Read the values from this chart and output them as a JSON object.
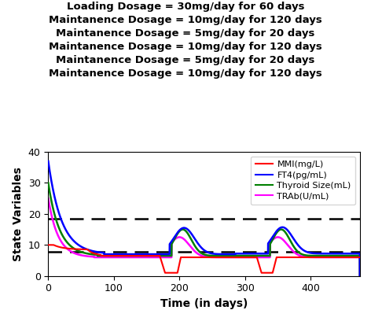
{
  "title_lines": [
    "Loading Dosage = 30mg/day for 60 days",
    "Maintanence Dosage = 10mg/day for 120 days",
    "Maintanence Dosage = 5mg/day for 20 days",
    "Maintanence Dosage = 10mg/day for 120 days",
    "Maintanence Dosage = 5mg/day for 20 days",
    "Maintanence Dosage = 10mg/day for 120 days"
  ],
  "xlabel": "Time (in days)",
  "ylabel": "State Variables",
  "xlim": [
    0,
    475
  ],
  "ylim": [
    0,
    40
  ],
  "dashed_lines": [
    7.7,
    18.5
  ],
  "legend_labels": [
    "MMI(mg/L)",
    "FT4(pg/mL)",
    "Thyroid Size(mL)",
    "TRAb(U/mL)"
  ],
  "legend_colors": [
    "red",
    "blue",
    "green",
    "magenta"
  ],
  "background": "#ffffff",
  "title_fontsize": 9.5,
  "title_fontweight": "bold"
}
